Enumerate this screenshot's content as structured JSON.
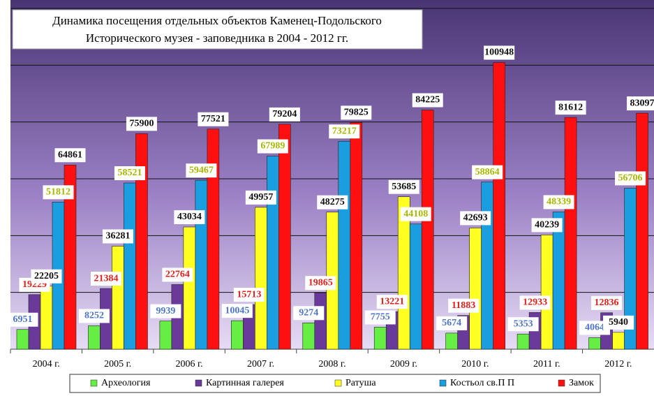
{
  "chart_data": {
    "type": "bar",
    "title": [
      "Динамика посещения отдельных объектов Каменец-Подольского",
      "Исторического музея - заповедника в 2004 - 2012 гг."
    ],
    "categories": [
      "2004 г.",
      "2005 г.",
      "2006 г.",
      "2007 г.",
      "2008 г.",
      "2009 г.",
      "2010 г.",
      "2011 г.",
      "2012 г."
    ],
    "series": [
      {
        "name": "Археология",
        "color": "#66ee44",
        "label_color": "#4f77c8",
        "values": [
          6951,
          8252,
          9939,
          10045,
          9274,
          7755,
          5674,
          5353,
          4064
        ]
      },
      {
        "name": "Картинная галерея",
        "color": "#6a3a9a",
        "label_color": "#e0201c",
        "values": [
          19229,
          21384,
          22764,
          15713,
          19865,
          13221,
          11883,
          12933,
          12836
        ]
      },
      {
        "name": "Ратуша",
        "color": "#ffff22",
        "label_color": "#111111",
        "values": [
          22205,
          36281,
          43034,
          49957,
          48275,
          53685,
          42693,
          40239,
          5940
        ]
      },
      {
        "name": "Костьол св.П П",
        "color": "#1a9ee0",
        "label_color": "#a8b800",
        "values": [
          51812,
          58521,
          59467,
          67989,
          73217,
          44108,
          58864,
          48339,
          56706
        ]
      },
      {
        "name": "Замок",
        "color": "#ff1010",
        "label_color": "#111111",
        "values": [
          64861,
          75900,
          77521,
          79204,
          79825,
          84225,
          100948,
          81612,
          83097
        ]
      }
    ],
    "ylim": [
      0,
      120000
    ],
    "yticks": [
      0,
      20000,
      40000,
      60000,
      80000,
      100000,
      120000
    ],
    "grid": true
  }
}
